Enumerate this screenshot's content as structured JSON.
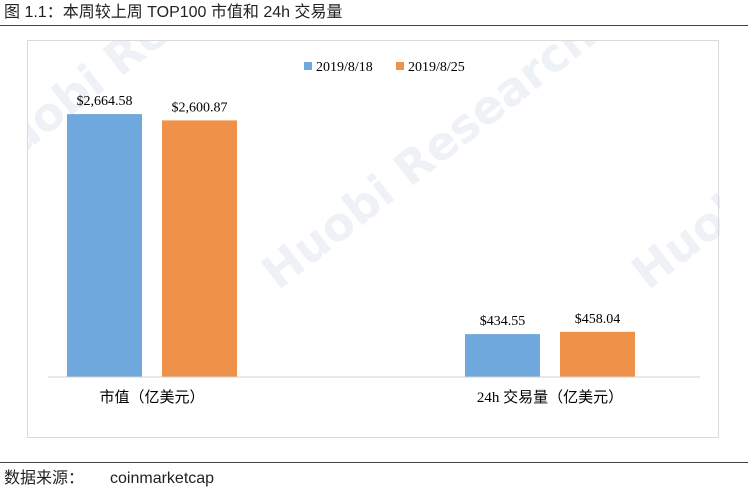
{
  "figure": {
    "title": "图 1.1：本周较上周 TOP100 市值和 24h 交易量",
    "source_label": "数据来源：",
    "source_value": "coinmarketcap",
    "watermark_text": "Huobi Research"
  },
  "chart_data": {
    "type": "bar",
    "categories": [
      "市值（亿美元）",
      "24h 交易量（亿美元）"
    ],
    "series": [
      {
        "name": "2019/8/18",
        "values": [
          2664.58,
          434.55
        ],
        "labels": [
          "$2,664.58",
          "$434.55"
        ],
        "color": "#6fa8dc"
      },
      {
        "name": "2019/8/25",
        "values": [
          2600.87,
          458.04
        ],
        "labels": [
          "$2,600.87",
          "$458.04"
        ],
        "color": "#f0914a"
      }
    ],
    "ylim": [
      0,
      3000
    ],
    "legend": "top-center",
    "grid": false
  }
}
